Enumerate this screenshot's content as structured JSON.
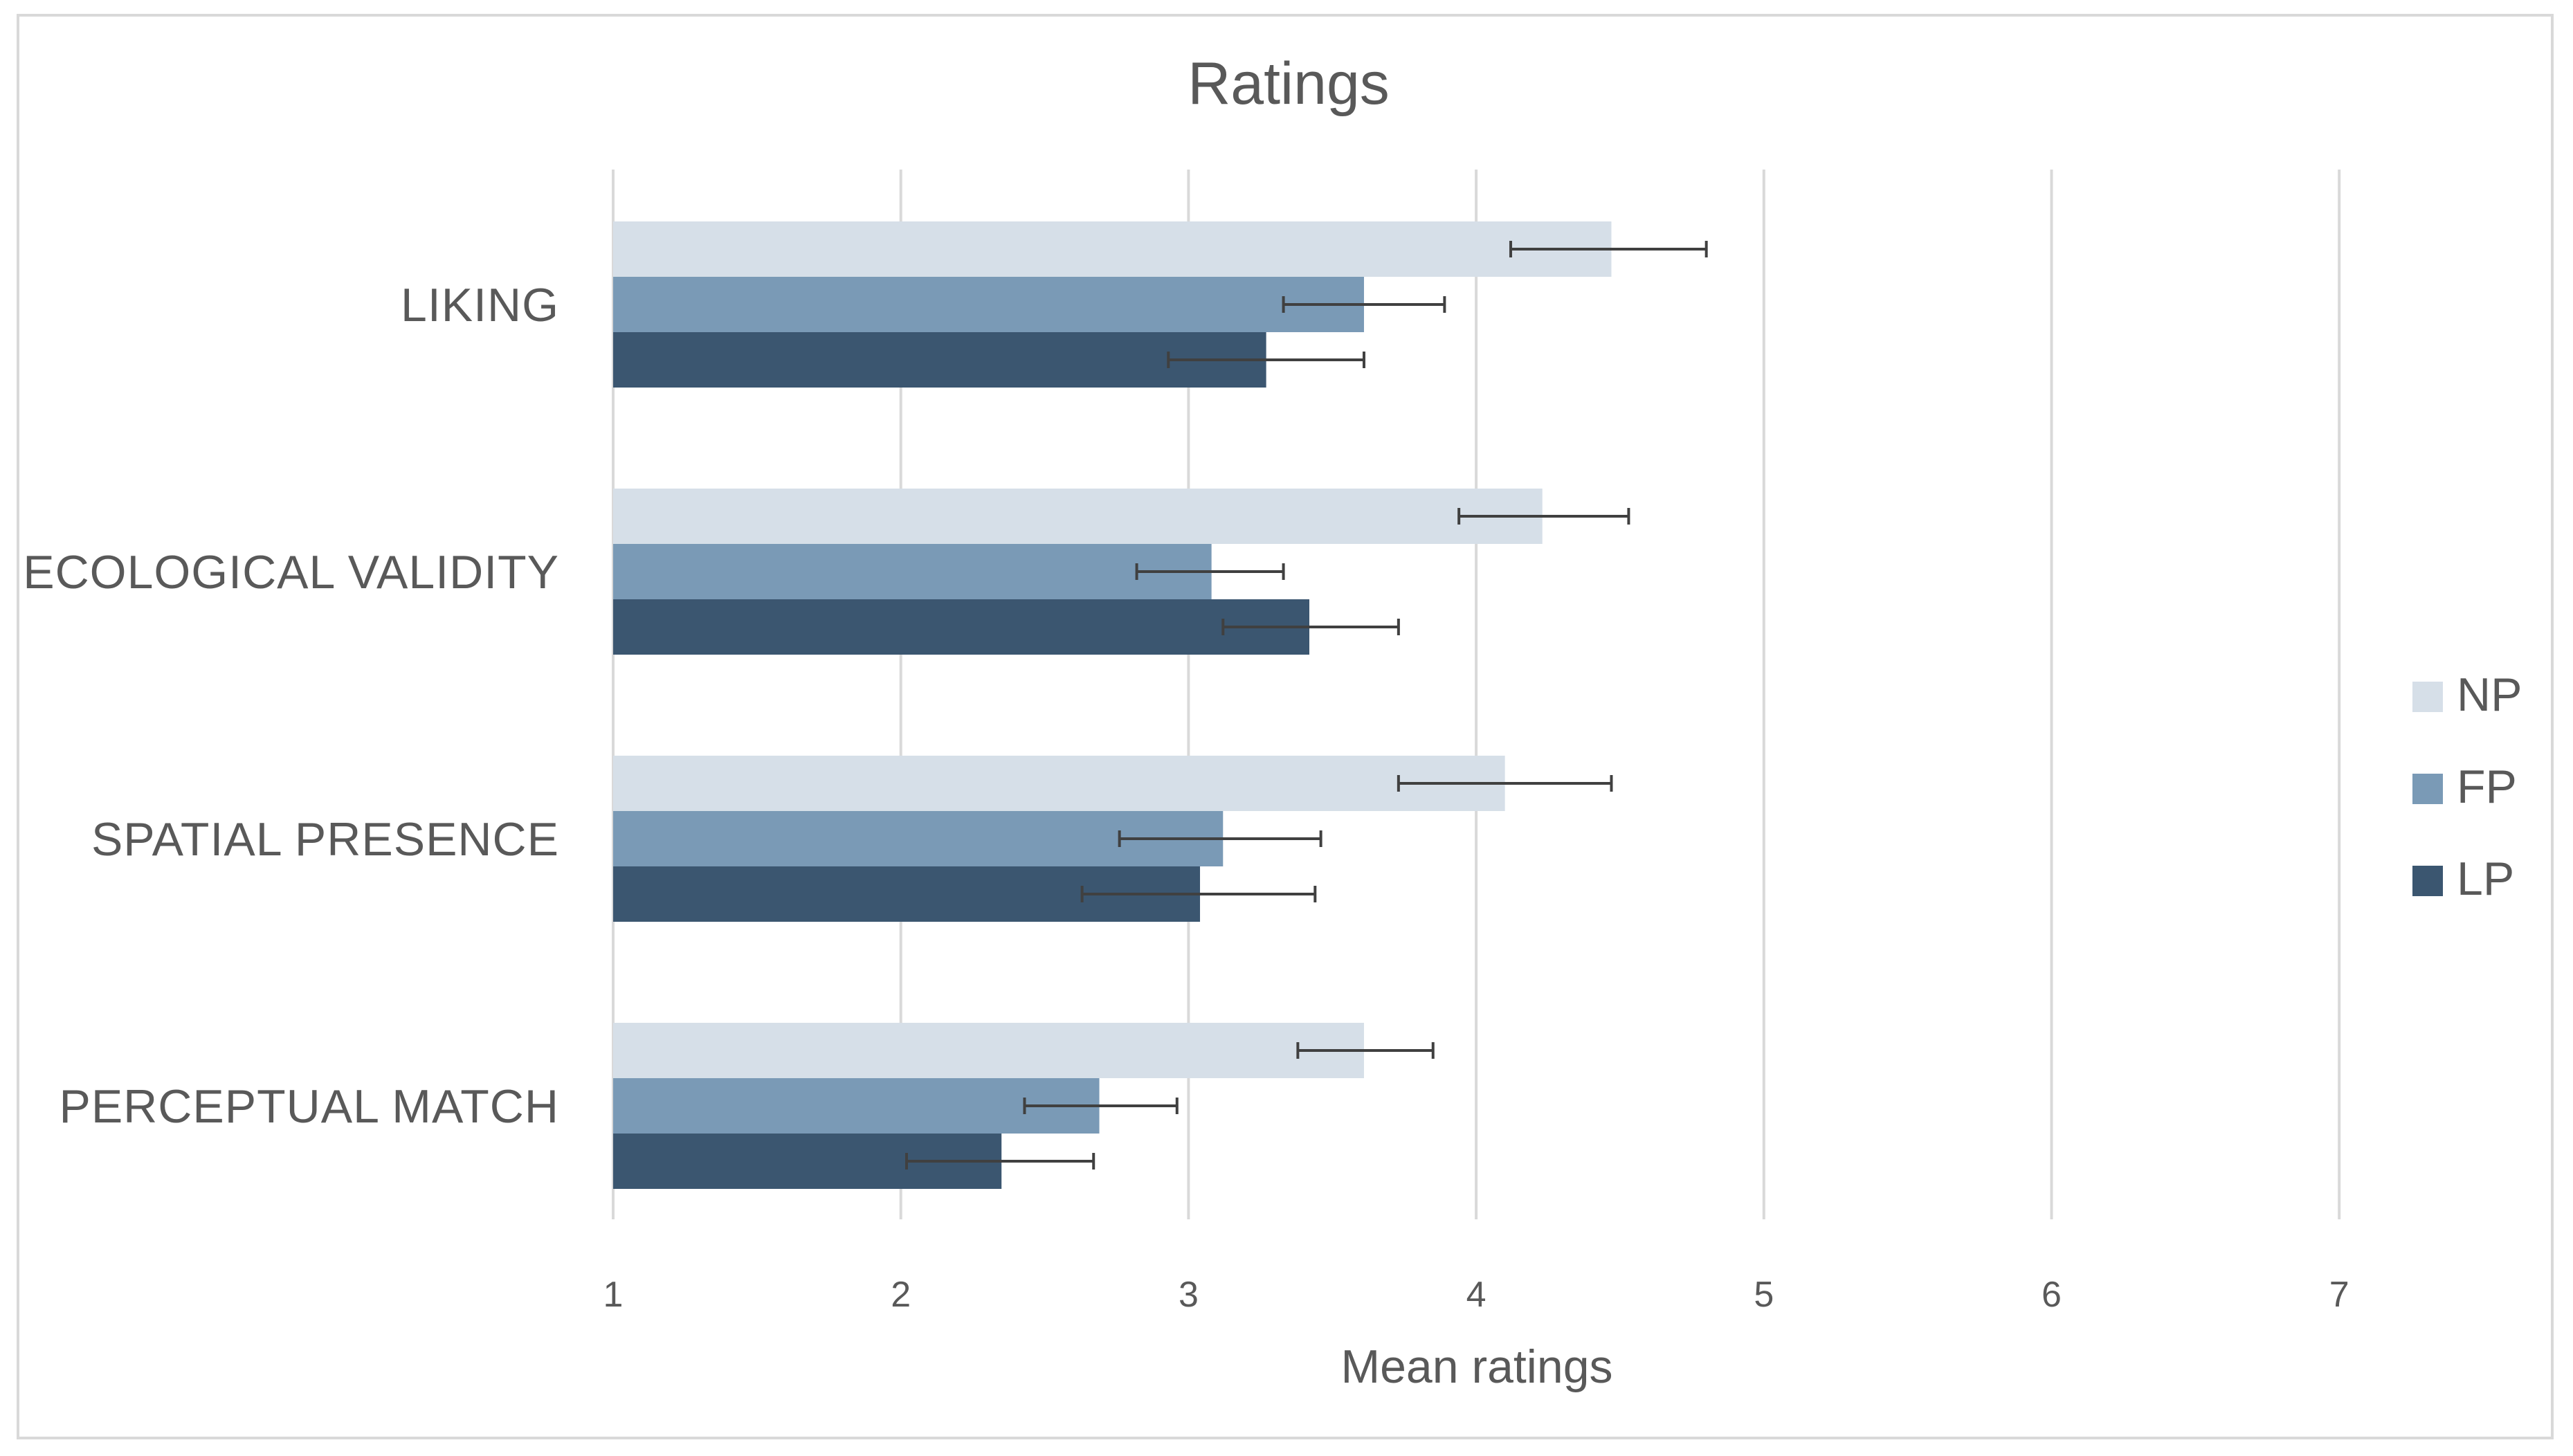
{
  "chart_data": {
    "type": "bar",
    "orientation": "horizontal",
    "title": "Ratings",
    "xlabel": "Mean ratings",
    "ylabel": "",
    "xlim": [
      1,
      7
    ],
    "ticks": [
      "1",
      "2",
      "3",
      "4",
      "5",
      "6",
      "7"
    ],
    "grid": true,
    "legend_position": "right",
    "categories": [
      "LIKING",
      "ECOLOGICAL VALIDITY",
      "SPATIAL PRESENCE",
      "PERCEPTUAL MATCH"
    ],
    "series": [
      {
        "name": "NP",
        "color": "#d6dfe8",
        "values": [
          4.47,
          4.23,
          4.1,
          3.61
        ],
        "err_low": [
          4.12,
          3.94,
          3.73,
          3.38
        ],
        "err_high": [
          4.8,
          4.53,
          4.47,
          3.85
        ]
      },
      {
        "name": "FP",
        "color": "#7a9ab6",
        "values": [
          3.61,
          3.08,
          3.12,
          2.69
        ],
        "err_low": [
          3.33,
          2.82,
          2.76,
          2.43
        ],
        "err_high": [
          3.89,
          3.33,
          3.46,
          2.96
        ]
      },
      {
        "name": "LP",
        "color": "#3b5670",
        "values": [
          3.27,
          3.42,
          3.04,
          2.35
        ],
        "err_low": [
          2.93,
          3.12,
          2.63,
          2.02
        ],
        "err_high": [
          3.61,
          3.73,
          3.44,
          2.67
        ]
      }
    ]
  }
}
